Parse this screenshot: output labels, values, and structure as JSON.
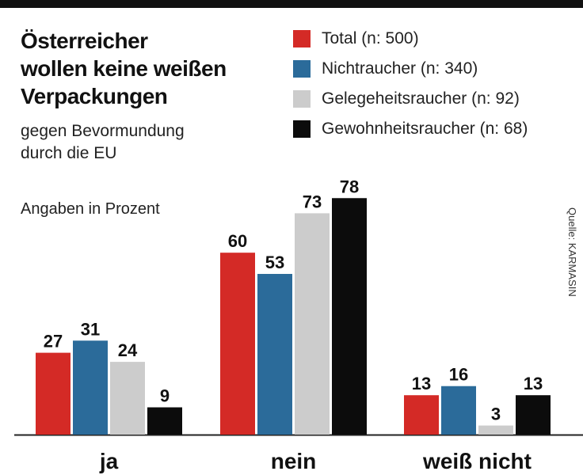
{
  "chart_data": {
    "type": "bar",
    "title": [
      "Österreicher",
      "wollen keine weißen",
      "Verpackungen"
    ],
    "subtitle": [
      "gegen Bevormundung",
      "durch die EU"
    ],
    "unit_label": "Angaben in Prozent",
    "source": "Quelle: KARMASIN",
    "categories": [
      "ja",
      "nein",
      "weiß nicht"
    ],
    "series": [
      {
        "name": "Total (n: 500)",
        "color": "#d42a26",
        "values": [
          27,
          60,
          13
        ]
      },
      {
        "name": "Nichtraucher (n: 340)",
        "color": "#2b6b9a",
        "values": [
          31,
          53,
          16
        ]
      },
      {
        "name": "Gelegeheitsraucher (n: 92)",
        "color": "#cccccc",
        "values": [
          24,
          73,
          3
        ]
      },
      {
        "name": "Gewohnheitsraucher (n: 68)",
        "color": "#0c0c0c",
        "values": [
          9,
          78,
          13
        ]
      }
    ],
    "ylim": [
      0,
      100
    ],
    "grid": false,
    "legend_position": "top-right"
  }
}
